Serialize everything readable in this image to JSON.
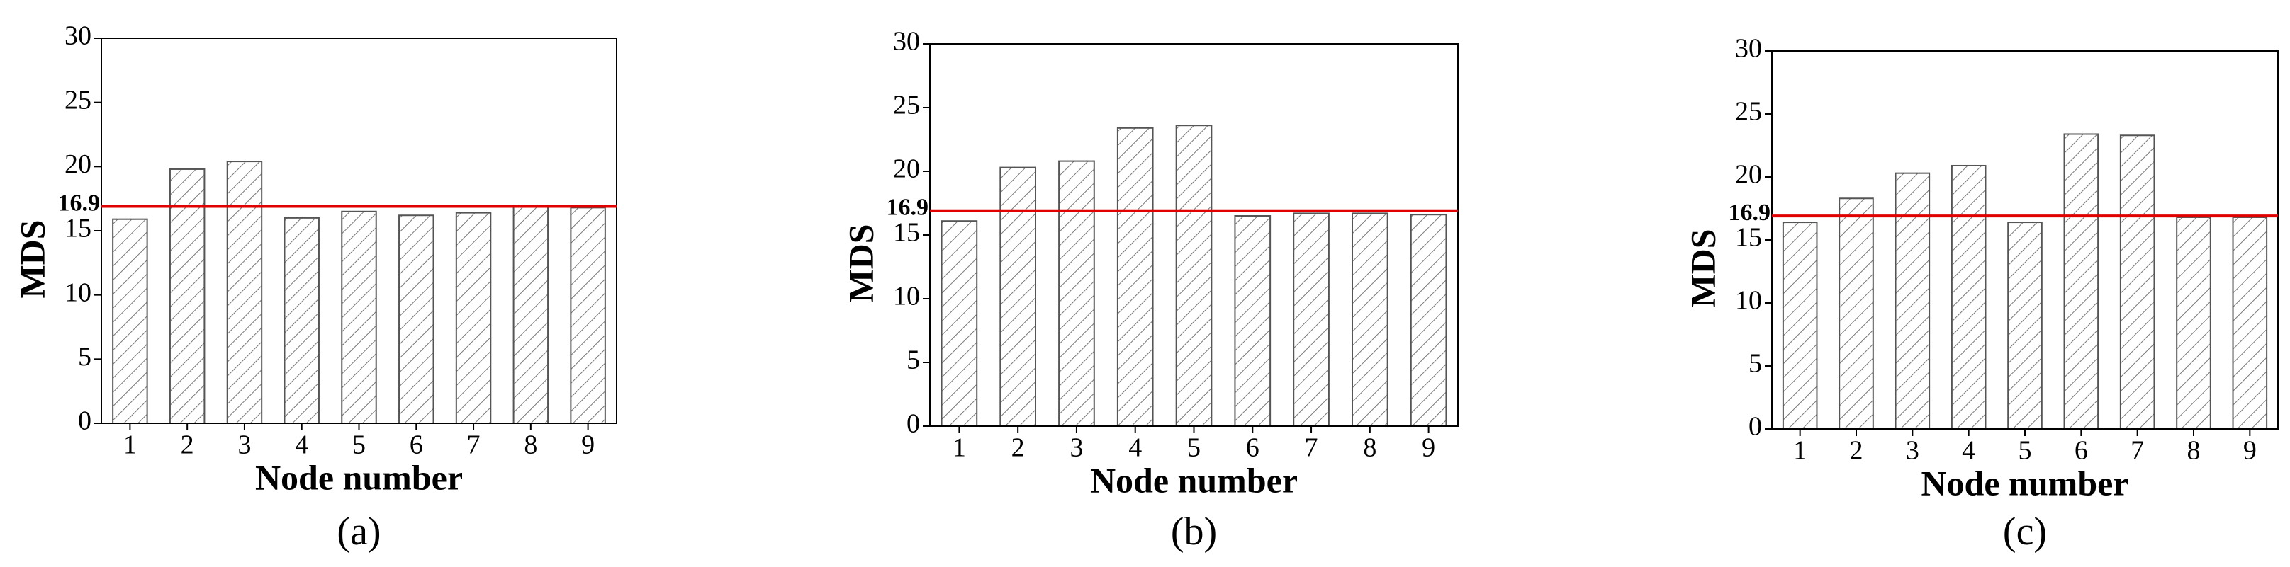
{
  "chart_data": [
    {
      "type": "bar",
      "categories": [
        "1",
        "2",
        "3",
        "4",
        "5",
        "6",
        "7",
        "8",
        "9"
      ],
      "values": [
        15.9,
        19.8,
        20.4,
        16.0,
        16.5,
        16.2,
        16.4,
        16.9,
        16.8
      ],
      "ylim": [
        0,
        30
      ],
      "yticks": [
        0,
        5,
        10,
        15,
        20,
        25,
        30
      ],
      "xlabel": "Node number",
      "ylabel": "MDS",
      "caption": "(a)",
      "hline": 16.9,
      "hline_color": "#e00000",
      "bar_edge_color": "#555555"
    },
    {
      "type": "bar",
      "categories": [
        "1",
        "2",
        "3",
        "4",
        "5",
        "6",
        "7",
        "8",
        "9"
      ],
      "values": [
        16.1,
        20.3,
        20.8,
        23.4,
        23.6,
        16.5,
        16.7,
        16.7,
        16.6
      ],
      "ylim": [
        0,
        30
      ],
      "yticks": [
        0,
        5,
        10,
        15,
        20,
        25,
        30
      ],
      "xlabel": "Node number",
      "ylabel": "MDS",
      "caption": "(b)",
      "hline": 16.9,
      "hline_color": "#e00000",
      "bar_edge_color": "#555555"
    },
    {
      "type": "bar",
      "categories": [
        "1",
        "2",
        "3",
        "4",
        "5",
        "6",
        "7",
        "8",
        "9"
      ],
      "values": [
        16.4,
        18.3,
        20.3,
        20.9,
        16.4,
        23.4,
        23.3,
        16.8,
        16.8
      ],
      "ylim": [
        0,
        30
      ],
      "yticks": [
        0,
        5,
        10,
        15,
        20,
        25,
        30
      ],
      "xlabel": "Node number",
      "ylabel": "MDS",
      "caption": "(c)",
      "hline": 16.9,
      "hline_color": "#e00000",
      "bar_edge_color": "#555555"
    }
  ]
}
